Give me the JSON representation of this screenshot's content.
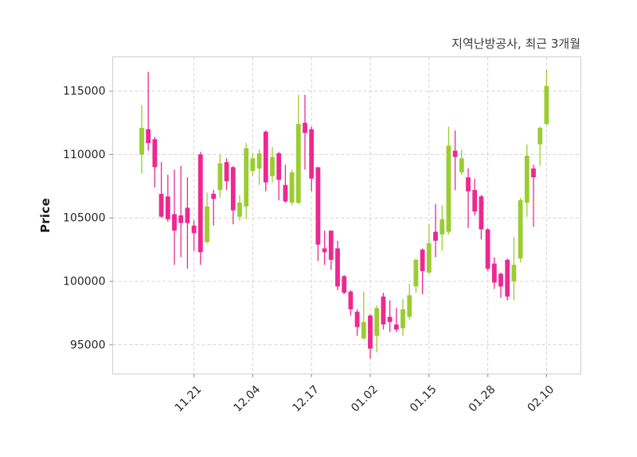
{
  "title": "지역난방공사, 최근 3개월",
  "chart_data": {
    "type": "candlestick",
    "title": "지역난방공사, 최근 3개월",
    "xlabel": "",
    "ylabel": "Price",
    "ylim": [
      92700,
      117700
    ],
    "y_ticks": [
      95000,
      100000,
      105000,
      110000,
      115000
    ],
    "x_tick_labels": [
      "11.21",
      "12.04",
      "12.17",
      "01.02",
      "01.15",
      "01.28",
      "02.10"
    ],
    "x_tick_indices": [
      8,
      17,
      26,
      35,
      44,
      53,
      62
    ],
    "grid": "dashed",
    "legend": "none",
    "colors": {
      "up": "#9ACD32",
      "down": "#ED2891",
      "grid": "#D4D4D4",
      "tick_text": "#262626",
      "tick_mark": "#9A9A9A",
      "panel_border": "#D4D4D4",
      "background": "#FFFFFF"
    },
    "series_name": "OHLC",
    "candles_format": [
      "open",
      "high",
      "low",
      "close"
    ],
    "candles": [
      [
        110000,
        113900,
        108500,
        112100
      ],
      [
        112000,
        116500,
        110300,
        110900
      ],
      [
        111200,
        111400,
        107400,
        109000
      ],
      [
        106900,
        109400,
        105000,
        105100
      ],
      [
        106700,
        108400,
        104700,
        104900
      ],
      [
        105300,
        108800,
        101300,
        104000
      ],
      [
        105200,
        109100,
        101900,
        104600
      ],
      [
        105800,
        108200,
        101000,
        104600
      ],
      [
        104400,
        104800,
        102400,
        103800
      ],
      [
        110000,
        110200,
        101300,
        102300
      ],
      [
        103100,
        107000,
        103000,
        105900
      ],
      [
        106900,
        107200,
        104400,
        106500
      ],
      [
        107200,
        110000,
        106600,
        109300
      ],
      [
        109400,
        109700,
        107200,
        107900
      ],
      [
        109000,
        109100,
        104500,
        105600
      ],
      [
        105100,
        106800,
        104800,
        106200
      ],
      [
        105900,
        110900,
        104900,
        110500
      ],
      [
        108700,
        110100,
        108300,
        109700
      ],
      [
        108900,
        110400,
        107600,
        110100
      ],
      [
        111800,
        111900,
        107100,
        107800
      ],
      [
        108300,
        110600,
        107800,
        109800
      ],
      [
        110100,
        110200,
        106400,
        108000
      ],
      [
        107600,
        109200,
        106200,
        106300
      ],
      [
        106200,
        108800,
        106000,
        108600
      ],
      [
        106200,
        114700,
        106100,
        112400
      ],
      [
        112500,
        114700,
        108800,
        111700
      ],
      [
        112000,
        112200,
        107100,
        108100
      ],
      [
        109000,
        109000,
        101600,
        102900
      ],
      [
        102600,
        104000,
        101300,
        102300
      ],
      [
        104000,
        104000,
        100900,
        101700
      ],
      [
        102600,
        103200,
        99300,
        99600
      ],
      [
        100400,
        100500,
        99000,
        99100
      ],
      [
        99200,
        99300,
        97300,
        97800
      ],
      [
        97600,
        97800,
        95700,
        96400
      ],
      [
        95500,
        99200,
        95400,
        96800
      ],
      [
        97300,
        97400,
        93900,
        94700
      ],
      [
        95700,
        98100,
        94400,
        97900
      ],
      [
        98800,
        99100,
        96200,
        96600
      ],
      [
        97200,
        98500,
        96000,
        96800
      ],
      [
        96600,
        97900,
        96000,
        96200
      ],
      [
        96300,
        98600,
        95700,
        97800
      ],
      [
        97200,
        99800,
        97000,
        98900
      ],
      [
        99600,
        101800,
        99100,
        101700
      ],
      [
        102500,
        102600,
        99000,
        100800
      ],
      [
        100700,
        104500,
        100600,
        103000
      ],
      [
        103900,
        106100,
        101900,
        103200
      ],
      [
        103700,
        106000,
        102400,
        104900
      ],
      [
        103900,
        112200,
        103700,
        110700
      ],
      [
        110300,
        111900,
        107200,
        109800
      ],
      [
        108600,
        110400,
        108400,
        109700
      ],
      [
        108200,
        108900,
        104200,
        107100
      ],
      [
        107200,
        108100,
        105200,
        105500
      ],
      [
        106700,
        106800,
        103300,
        104100
      ],
      [
        104100,
        104200,
        100800,
        101000
      ],
      [
        101400,
        101900,
        99400,
        99900
      ],
      [
        100600,
        100700,
        98700,
        99600
      ],
      [
        101700,
        101800,
        98500,
        98800
      ],
      [
        100000,
        103500,
        98500,
        101300
      ],
      [
        101800,
        106600,
        101500,
        106400
      ],
      [
        106200,
        110800,
        105100,
        109900
      ],
      [
        108900,
        109200,
        104300,
        108200
      ],
      [
        110800,
        112200,
        109100,
        112100
      ],
      [
        112400,
        116700,
        112300,
        115400
      ]
    ]
  }
}
